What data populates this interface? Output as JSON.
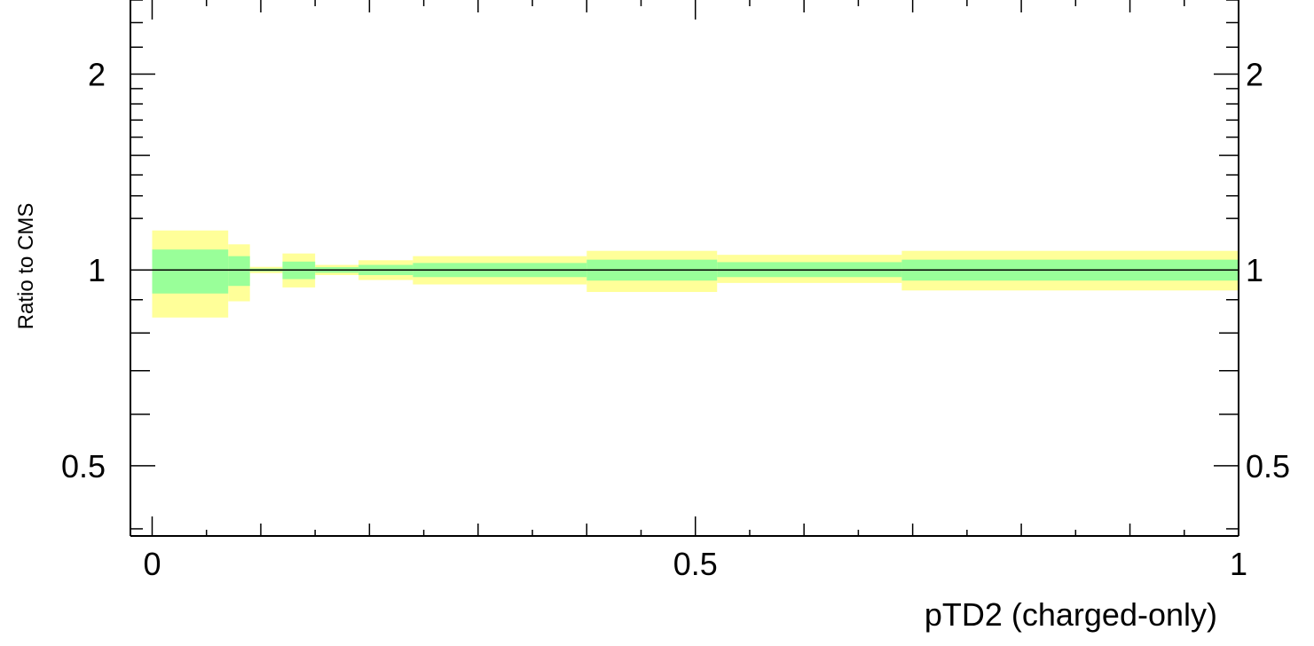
{
  "chart_data": {
    "type": "area",
    "xlabel": "pTD2 (charged-only)",
    "ylabel": "Ratio to CMS",
    "xlim": [
      -0.02,
      1.0
    ],
    "ylim": [
      0.39,
      2.6
    ],
    "y_scale": "log",
    "x_ticks": [
      {
        "value": 0,
        "label": "0"
      },
      {
        "value": 0.5,
        "label": "0.5"
      },
      {
        "value": 1,
        "label": "1"
      }
    ],
    "y_ticks": [
      {
        "value": 0.5,
        "label": "0.5"
      },
      {
        "value": 1,
        "label": "1"
      },
      {
        "value": 2,
        "label": "2"
      }
    ],
    "reference_line": 1,
    "colors": {
      "outer_band": "#ffff99",
      "inner_band": "#99ff99",
      "axes": "#000000"
    },
    "series": [
      {
        "band": "outer",
        "bins": [
          {
            "x0": 0.0,
            "x1": 0.07,
            "lo": 0.845,
            "hi": 1.15
          },
          {
            "x0": 0.07,
            "x1": 0.09,
            "lo": 0.895,
            "hi": 1.095
          },
          {
            "x0": 0.09,
            "x1": 0.12,
            "lo": 0.989,
            "hi": 1.011
          },
          {
            "x0": 0.12,
            "x1": 0.15,
            "lo": 0.94,
            "hi": 1.06
          },
          {
            "x0": 0.15,
            "x1": 0.19,
            "lo": 0.982,
            "hi": 1.018
          },
          {
            "x0": 0.19,
            "x1": 0.24,
            "lo": 0.965,
            "hi": 1.035
          },
          {
            "x0": 0.24,
            "x1": 0.4,
            "lo": 0.95,
            "hi": 1.05
          },
          {
            "x0": 0.4,
            "x1": 0.52,
            "lo": 0.925,
            "hi": 1.07
          },
          {
            "x0": 0.52,
            "x1": 0.69,
            "lo": 0.955,
            "hi": 1.055
          },
          {
            "x0": 0.69,
            "x1": 1.0,
            "lo": 0.93,
            "hi": 1.07
          }
        ]
      },
      {
        "band": "inner",
        "bins": [
          {
            "x0": 0.0,
            "x1": 0.07,
            "lo": 0.92,
            "hi": 1.075
          },
          {
            "x0": 0.07,
            "x1": 0.09,
            "lo": 0.945,
            "hi": 1.05
          },
          {
            "x0": 0.09,
            "x1": 0.12,
            "lo": 0.995,
            "hi": 1.005
          },
          {
            "x0": 0.12,
            "x1": 0.15,
            "lo": 0.968,
            "hi": 1.03
          },
          {
            "x0": 0.15,
            "x1": 0.19,
            "lo": 0.99,
            "hi": 1.01
          },
          {
            "x0": 0.19,
            "x1": 0.24,
            "lo": 0.982,
            "hi": 1.018
          },
          {
            "x0": 0.24,
            "x1": 0.4,
            "lo": 0.975,
            "hi": 1.025
          },
          {
            "x0": 0.4,
            "x1": 0.52,
            "lo": 0.963,
            "hi": 1.037
          },
          {
            "x0": 0.52,
            "x1": 0.69,
            "lo": 0.975,
            "hi": 1.028
          },
          {
            "x0": 0.69,
            "x1": 1.0,
            "lo": 0.963,
            "hi": 1.037
          }
        ]
      }
    ]
  }
}
